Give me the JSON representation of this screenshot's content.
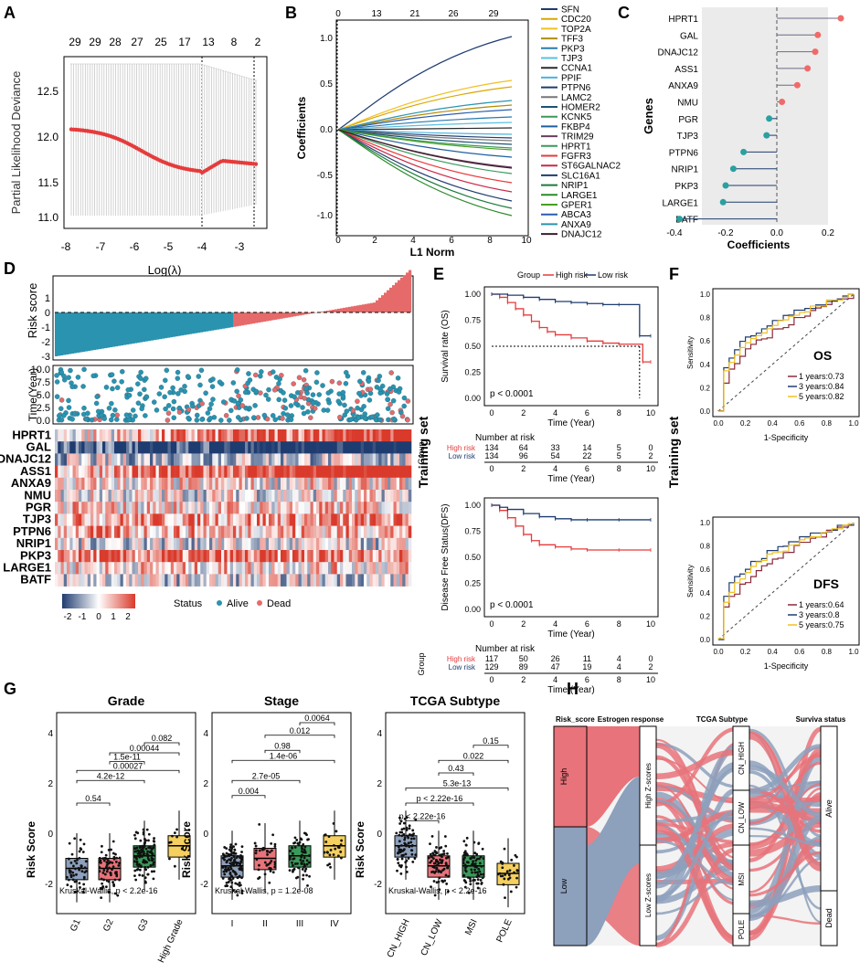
{
  "panel_letters": [
    "A",
    "B",
    "C",
    "D",
    "E",
    "F",
    "G",
    "H"
  ],
  "colors": {
    "red": "#e63b3b",
    "navy": "#1f3c70",
    "teal": "#2a93b0",
    "salmon": "#e66a6a",
    "gray": "#aaaaaa",
    "yellow": "#f0c020",
    "green": "#3a9a5a",
    "slate": "#8da0bc",
    "sankey_red": "#e8737a"
  },
  "panelA": {
    "top_ticks": [
      "29",
      "29",
      "28",
      "27",
      "25",
      "17",
      "13",
      "8",
      "2"
    ],
    "ylabel": "Partial Likelihood Deviance",
    "xlabel": "Log(λ)",
    "yticks": [
      "11.0",
      "11.5",
      "12.0",
      "12.5"
    ],
    "xticks": [
      "-8",
      "-7",
      "-6",
      "-5",
      "-4",
      "-3"
    ]
  },
  "panelB": {
    "top_ticks": [
      "0",
      "13",
      "21",
      "26",
      "29"
    ],
    "ylabel": "Coefficients",
    "xlabel": "L1 Norm",
    "yticks": [
      "1.0",
      "0.5",
      "0.0",
      "-0.5",
      "-1.0"
    ],
    "xticks": [
      "0",
      "2",
      "4",
      "6",
      "8",
      "10"
    ],
    "legend": [
      "SFN",
      "CDC20",
      "TOP2A",
      "TFF3",
      "PKP3",
      "TJP3",
      "CCNA1",
      "PPIF",
      "PTPN6",
      "LAMC2",
      "HOMER2",
      "KCNK5",
      "FKBP4",
      "TRIM29",
      "HPRT1",
      "FGFR3",
      "ST6GALNAC2",
      "SLC16A1",
      "NRIP1",
      "LARGE1",
      "GPER1",
      "ABCA3",
      "ANXA9",
      "DNAJC12"
    ],
    "legend_colors": [
      "#1f3c70",
      "#d9a600",
      "#f0c020",
      "#b38b00",
      "#2a7ab0",
      "#5bc0de",
      "#2b2b2b",
      "#4ab3e0",
      "#1f3c70",
      "#777777",
      "#1a5276",
      "#3a9a5a",
      "#1f5fa0",
      "#6b3d5e",
      "#3a9a5a",
      "#e63b3b",
      "#c9284b",
      "#1f3c70",
      "#1a7a3a",
      "#2b8a2b",
      "#48a020",
      "#2b5db0",
      "#2a93b0",
      "#3a1f2b"
    ]
  },
  "panelC": {
    "ylabel": "Genes",
    "xlabel": "Coefficients",
    "xticks": [
      "-0.4",
      "-0.2",
      "0.0",
      "0.2"
    ],
    "genes": [
      "HPRT1",
      "GAL",
      "DNAJC12",
      "ASS1",
      "ANXA9",
      "NMU",
      "PGR",
      "TJP3",
      "PTPN6",
      "NRIP1",
      "PKP3",
      "LARGE1",
      "BATF"
    ],
    "coefs": [
      0.25,
      0.16,
      0.15,
      0.12,
      0.08,
      0.02,
      -0.03,
      -0.04,
      -0.13,
      -0.17,
      -0.2,
      -0.21,
      -0.38
    ]
  },
  "panelD": {
    "risk_label": "Risk score",
    "risk_yticks": [
      "1",
      "0",
      "-1",
      "-2",
      "-3"
    ],
    "time_label": "Time(Year)",
    "time_yticks": [
      "10.0",
      "7.5",
      "5.0",
      "2.5",
      "0.0"
    ],
    "genes": [
      "HPRT1",
      "GAL",
      "DNAJC12",
      "ASS1",
      "ANXA9",
      "NMU",
      "PGR",
      "TJP3",
      "PTPN6",
      "NRIP1",
      "PKP3",
      "LARGE1",
      "BATF"
    ],
    "scale_ticks": [
      "-2",
      "-1",
      "0",
      "1",
      "2"
    ],
    "status_label": "Status",
    "status_alive": "Alive",
    "status_dead": "Dead"
  },
  "panelE": {
    "training_label": "Training set",
    "group_label": "Group",
    "high_risk": "High risk",
    "low_risk": "Low risk",
    "os_ylabel": "Survival rate (OS)",
    "dfs_ylabel": "Disease Free Status(DFS)",
    "xlabel": "Time (Year)",
    "yticks": [
      "1.00",
      "0.75",
      "0.50",
      "0.25",
      "0.00"
    ],
    "xticks": [
      "0",
      "2",
      "4",
      "6",
      "8",
      "10"
    ],
    "pval": "p < 0.0001",
    "nar_title": "Number at risk",
    "nar_group": "Group",
    "os_nar_high": [
      "134",
      "64",
      "33",
      "14",
      "5",
      "0"
    ],
    "os_nar_low": [
      "134",
      "96",
      "54",
      "22",
      "5",
      "2"
    ],
    "dfs_nar_high": [
      "117",
      "50",
      "26",
      "11",
      "4",
      "0"
    ],
    "dfs_nar_low": [
      "129",
      "89",
      "47",
      "19",
      "4",
      "2"
    ]
  },
  "panelF": {
    "training_label": "Training set",
    "ylabel": "Sensitivity",
    "xlabel": "1-Specificity",
    "ticks": [
      "0.0",
      "0.2",
      "0.4",
      "0.6",
      "0.8",
      "1.0"
    ],
    "os_title": "OS",
    "os_legend": [
      "1 years:0.73",
      "3 years:0.84",
      "5 years:0.82"
    ],
    "dfs_title": "DFS",
    "dfs_legend": [
      "1 years:0.64",
      "3 years:0.8",
      "5 years:0.75"
    ]
  },
  "panelG": {
    "ylabel": "Risk Score",
    "yticks": [
      "4",
      "2",
      "0",
      "-2"
    ],
    "grade": {
      "title": "Grade",
      "cats": [
        "G1",
        "G2",
        "G3",
        "High Grade"
      ],
      "pvals": [
        "0.54",
        "4.2e-12",
        "0.00027",
        "1.5e-11",
        "0.00044",
        "0.082"
      ],
      "kw": "Kruskal-Wallis, p < 2.2e-16"
    },
    "stage": {
      "title": "Stage",
      "cats": [
        "I",
        "II",
        "III",
        "IV"
      ],
      "pvals": [
        "0.004",
        "2.7e-05",
        "1.4e-06",
        "0.98",
        "0.012",
        "0.0064"
      ],
      "kw": "Kruskal-Wallis, p = 1.2e-08"
    },
    "subtype": {
      "title": "TCGA Subtype",
      "cats": [
        "CN_HIGH",
        "CN_LOW",
        "MSI",
        "POLE"
      ],
      "pvals": [
        "p < 2.22e-16",
        "p < 2.22e-16",
        "5.3e-13",
        "0.43",
        "0.022",
        "0.15"
      ],
      "kw": "Kruskal-Wallis, p < 2.2e-16"
    }
  },
  "panelH": {
    "headers": [
      "Risk_score",
      "Estrogen response",
      "TCGA Subtype",
      "Surviva status"
    ],
    "risk": [
      "High",
      "Low"
    ],
    "estrogen": [
      "High Z-scores",
      "Low Z-scores"
    ],
    "subtype": [
      "CN_HIGH",
      "CN_LOW",
      "MSI",
      "POLE"
    ],
    "status": [
      "Alive",
      "Dead"
    ]
  }
}
